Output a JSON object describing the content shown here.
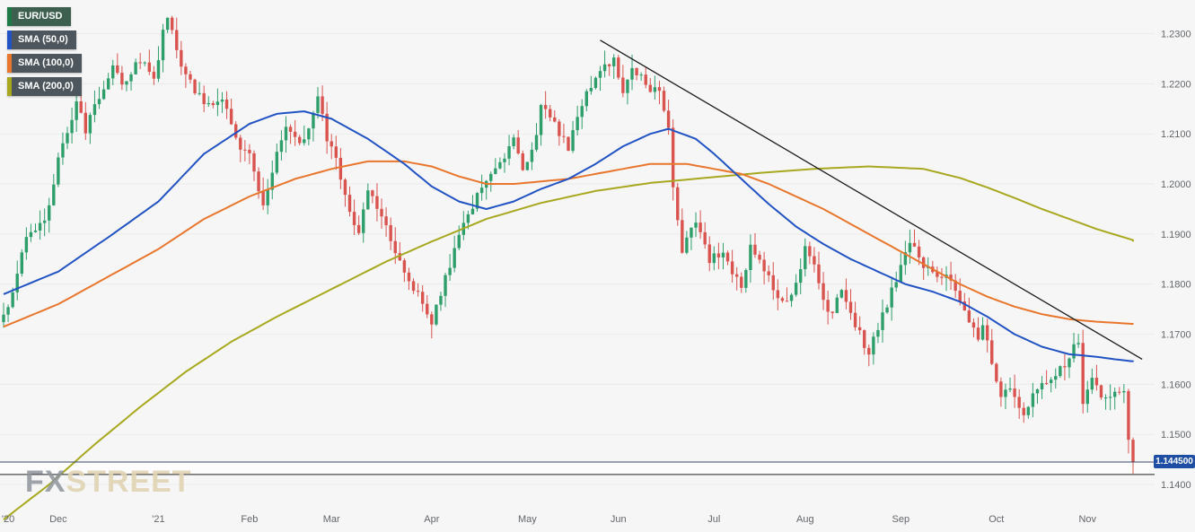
{
  "legend": {
    "items": [
      {
        "label": "EUR/USD",
        "accent": "#1d7a46",
        "bg": "#3c5f50"
      },
      {
        "label": "SMA (50,0)",
        "accent": "#2253c4",
        "bg": "#4d565c"
      },
      {
        "label": "SMA (100,0)",
        "accent": "#e8762d",
        "bg": "#4d565c"
      },
      {
        "label": "SMA (200,0)",
        "accent": "#a8a820",
        "bg": "#4d565c"
      }
    ]
  },
  "watermark": {
    "fx": "FX",
    "street": "STREET"
  },
  "price_badge": {
    "value": "1.144500",
    "bg": "#1f4fa5"
  },
  "chart_data": {
    "type": "candlestick",
    "title": "EUR/USD daily candlestick chart with SMA(50), SMA(100), SMA(200), FXStreet",
    "pair": "EUR/USD",
    "last_close": 1.1445,
    "candle_up_color": "#2e9e6b",
    "candle_down_color": "#d9534f",
    "background": "#f6f6f6",
    "grid_color": "#ebebeb",
    "y_axis": {
      "min": 1.135,
      "max": 1.236,
      "ticks": [
        "1.2300",
        "1.2200",
        "1.2100",
        "1.2000",
        "1.1900",
        "1.1800",
        "1.1700",
        "1.1600",
        "1.1500",
        "1.1400"
      ]
    },
    "x_axis": {
      "ticks": [
        {
          "label": "'20",
          "i": 1
        },
        {
          "label": "Dec",
          "i": 12
        },
        {
          "label": "'21",
          "i": 34
        },
        {
          "label": "Feb",
          "i": 54
        },
        {
          "label": "Mar",
          "i": 72
        },
        {
          "label": "Apr",
          "i": 94
        },
        {
          "label": "May",
          "i": 115
        },
        {
          "label": "Jun",
          "i": 135
        },
        {
          "label": "Jul",
          "i": 156
        },
        {
          "label": "Aug",
          "i": 176
        },
        {
          "label": "Sep",
          "i": 197
        },
        {
          "label": "Oct",
          "i": 218
        },
        {
          "label": "Nov",
          "i": 238
        }
      ]
    },
    "candles_n": 249,
    "close_anchors": [
      [
        0,
        1.174
      ],
      [
        2,
        1.178
      ],
      [
        5,
        1.189
      ],
      [
        8,
        1.192
      ],
      [
        10,
        1.195
      ],
      [
        12,
        1.206
      ],
      [
        14,
        1.21
      ],
      [
        16,
        1.217
      ],
      [
        18,
        1.211
      ],
      [
        20,
        1.215
      ],
      [
        24,
        1.224
      ],
      [
        26,
        1.219
      ],
      [
        30,
        1.225
      ],
      [
        33,
        1.2215
      ],
      [
        36,
        1.234
      ],
      [
        38,
        1.226
      ],
      [
        40,
        1.222
      ],
      [
        44,
        1.216
      ],
      [
        48,
        1.217
      ],
      [
        52,
        1.207
      ],
      [
        54,
        1.206
      ],
      [
        57,
        1.196
      ],
      [
        62,
        1.212
      ],
      [
        66,
        1.208
      ],
      [
        69,
        1.217
      ],
      [
        71,
        1.209
      ],
      [
        73,
        1.205
      ],
      [
        75,
        1.198
      ],
      [
        78,
        1.19
      ],
      [
        80,
        1.199
      ],
      [
        84,
        1.191
      ],
      [
        88,
        1.182
      ],
      [
        92,
        1.176
      ],
      [
        94,
        1.172
      ],
      [
        96,
        1.178
      ],
      [
        100,
        1.19
      ],
      [
        104,
        1.198
      ],
      [
        108,
        1.203
      ],
      [
        112,
        1.209
      ],
      [
        114,
        1.202
      ],
      [
        116,
        1.206
      ],
      [
        118,
        1.215
      ],
      [
        120,
        1.213
      ],
      [
        124,
        1.207
      ],
      [
        128,
        1.218
      ],
      [
        132,
        1.223
      ],
      [
        134,
        1.225
      ],
      [
        136,
        1.219
      ],
      [
        138,
        1.223
      ],
      [
        140,
        1.221
      ],
      [
        142,
        1.219
      ],
      [
        144,
        1.218
      ],
      [
        146,
        1.212
      ],
      [
        147,
        1.199
      ],
      [
        149,
        1.186
      ],
      [
        152,
        1.193
      ],
      [
        155,
        1.185
      ],
      [
        158,
        1.187
      ],
      [
        160,
        1.182
      ],
      [
        162,
        1.179
      ],
      [
        164,
        1.188
      ],
      [
        168,
        1.181
      ],
      [
        170,
        1.177
      ],
      [
        173,
        1.1775
      ],
      [
        176,
        1.187
      ],
      [
        178,
        1.184
      ],
      [
        180,
        1.176
      ],
      [
        182,
        1.174
      ],
      [
        184,
        1.1795
      ],
      [
        188,
        1.17
      ],
      [
        190,
        1.1665
      ],
      [
        193,
        1.174
      ],
      [
        196,
        1.181
      ],
      [
        197,
        1.184
      ],
      [
        199,
        1.188
      ],
      [
        202,
        1.184
      ],
      [
        205,
        1.181
      ],
      [
        208,
        1.181
      ],
      [
        210,
        1.177
      ],
      [
        212,
        1.173
      ],
      [
        214,
        1.169
      ],
      [
        215,
        1.1725
      ],
      [
        217,
        1.164
      ],
      [
        219,
        1.158
      ],
      [
        221,
        1.159
      ],
      [
        224,
        1.153
      ],
      [
        227,
        1.1595
      ],
      [
        230,
        1.16
      ],
      [
        233,
        1.164
      ],
      [
        236,
        1.1685
      ],
      [
        237,
        1.156
      ],
      [
        239,
        1.1605
      ],
      [
        241,
        1.158
      ],
      [
        243,
        1.1565
      ],
      [
        245,
        1.159
      ],
      [
        246,
        1.159
      ],
      [
        247,
        1.148
      ],
      [
        248,
        1.1445
      ]
    ],
    "series": [
      {
        "name": "SMA (50,0)",
        "color": "#2253c4",
        "width": 2,
        "anchors": [
          [
            0,
            1.178
          ],
          [
            12,
            1.1825
          ],
          [
            24,
            1.19
          ],
          [
            34,
            1.1965
          ],
          [
            44,
            1.206
          ],
          [
            54,
            1.212
          ],
          [
            60,
            1.214
          ],
          [
            66,
            1.2145
          ],
          [
            72,
            1.213
          ],
          [
            80,
            1.209
          ],
          [
            88,
            1.204
          ],
          [
            94,
            1.1995
          ],
          [
            100,
            1.1965
          ],
          [
            106,
            1.195
          ],
          [
            112,
            1.1965
          ],
          [
            118,
            1.199
          ],
          [
            124,
            1.201
          ],
          [
            130,
            1.204
          ],
          [
            136,
            1.2075
          ],
          [
            142,
            1.21
          ],
          [
            146,
            1.211
          ],
          [
            152,
            1.209
          ],
          [
            156,
            1.206
          ],
          [
            162,
            1.201
          ],
          [
            168,
            1.196
          ],
          [
            174,
            1.1915
          ],
          [
            180,
            1.188
          ],
          [
            186,
            1.185
          ],
          [
            192,
            1.1825
          ],
          [
            198,
            1.18
          ],
          [
            204,
            1.1785
          ],
          [
            210,
            1.1765
          ],
          [
            216,
            1.1735
          ],
          [
            222,
            1.17
          ],
          [
            228,
            1.1675
          ],
          [
            234,
            1.166
          ],
          [
            240,
            1.1655
          ],
          [
            244,
            1.165
          ],
          [
            249,
            1.1645
          ]
        ]
      },
      {
        "name": "SMA (100,0)",
        "color": "#e8762d",
        "width": 2,
        "anchors": [
          [
            0,
            1.1715
          ],
          [
            12,
            1.176
          ],
          [
            24,
            1.182
          ],
          [
            34,
            1.187
          ],
          [
            44,
            1.193
          ],
          [
            54,
            1.1975
          ],
          [
            64,
            1.201
          ],
          [
            72,
            1.203
          ],
          [
            80,
            1.2045
          ],
          [
            88,
            1.2045
          ],
          [
            94,
            1.2035
          ],
          [
            100,
            1.2015
          ],
          [
            106,
            1.2
          ],
          [
            112,
            1.2
          ],
          [
            118,
            1.2005
          ],
          [
            124,
            1.201
          ],
          [
            130,
            1.202
          ],
          [
            136,
            1.203
          ],
          [
            142,
            1.204
          ],
          [
            150,
            1.204
          ],
          [
            156,
            1.203
          ],
          [
            162,
            1.202
          ],
          [
            168,
            1.2
          ],
          [
            174,
            1.1975
          ],
          [
            180,
            1.195
          ],
          [
            186,
            1.192
          ],
          [
            192,
            1.189
          ],
          [
            198,
            1.186
          ],
          [
            204,
            1.183
          ],
          [
            210,
            1.18
          ],
          [
            216,
            1.1775
          ],
          [
            222,
            1.1755
          ],
          [
            228,
            1.174
          ],
          [
            234,
            1.173
          ],
          [
            240,
            1.1725
          ],
          [
            249,
            1.172
          ]
        ]
      },
      {
        "name": "SMA (200,0)",
        "color": "#a8a820",
        "width": 2,
        "anchors": [
          [
            0,
            1.133
          ],
          [
            10,
            1.14
          ],
          [
            20,
            1.148
          ],
          [
            30,
            1.1555
          ],
          [
            40,
            1.1625
          ],
          [
            50,
            1.1685
          ],
          [
            60,
            1.1735
          ],
          [
            72,
            1.179
          ],
          [
            84,
            1.1845
          ],
          [
            94,
            1.1885
          ],
          [
            106,
            1.193
          ],
          [
            118,
            1.1962
          ],
          [
            130,
            1.1986
          ],
          [
            142,
            1.2002
          ],
          [
            154,
            1.2012
          ],
          [
            166,
            1.2022
          ],
          [
            178,
            1.203
          ],
          [
            190,
            1.2035
          ],
          [
            202,
            1.203
          ],
          [
            210,
            1.2012
          ],
          [
            216,
            1.1993
          ],
          [
            222,
            1.1972
          ],
          [
            228,
            1.195
          ],
          [
            234,
            1.193
          ],
          [
            240,
            1.191
          ],
          [
            249,
            1.1885
          ]
        ]
      }
    ],
    "trendline": {
      "from": [
        131,
        1.2287
      ],
      "to": [
        250,
        1.165
      ],
      "color": "#1a1a1a"
    },
    "hlines": [
      {
        "value": 1.1445,
        "color": "#3a4a6b",
        "name": "current-price-line"
      },
      {
        "value": 1.142,
        "color": "#1c1f22",
        "name": "support-line"
      }
    ]
  }
}
